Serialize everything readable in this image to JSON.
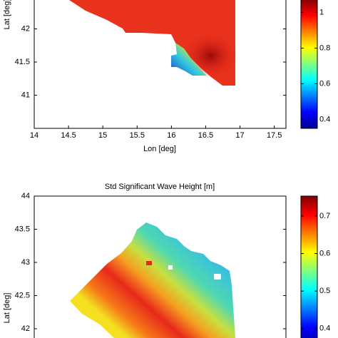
{
  "chart_data": [
    {
      "type": "heatmap",
      "xlabel": "Lon [deg]",
      "ylabel": "Lat [deg]",
      "xlim": [
        14,
        17.67
      ],
      "xticks": [
        14,
        14.5,
        15,
        15.5,
        16,
        16.5,
        17,
        17.5
      ],
      "ylim": [
        40.5,
        44
      ],
      "yticks": [
        41,
        41.5,
        42
      ],
      "clim": [
        0.35,
        1.07
      ],
      "cticks": [
        0.4,
        0.6,
        0.8,
        1
      ]
    },
    {
      "type": "heatmap",
      "title": "Std Significant Wave Height [m]",
      "ylabel": "Lat [deg]",
      "ylim": [
        41.86,
        44
      ],
      "yticks": [
        42,
        42.5,
        43,
        43.5,
        44
      ],
      "clim": [
        0.375,
        0.753
      ],
      "cticks": [
        0.4,
        0.5,
        0.6,
        0.7
      ]
    }
  ]
}
